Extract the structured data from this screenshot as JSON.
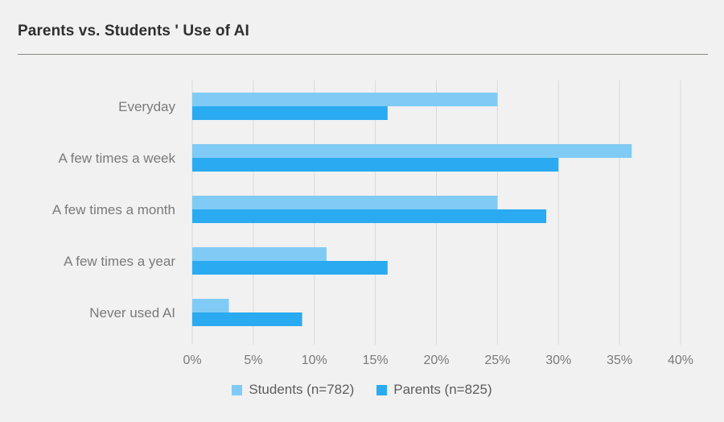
{
  "header": {
    "title": "Parents vs. Students ' Use of AI"
  },
  "colors": {
    "students": "#80cbf5",
    "parents": "#2aaaf0",
    "grid": "#d9d9d9",
    "text": "#7a7a7a"
  },
  "chart_data": {
    "type": "bar",
    "orientation": "horizontal",
    "title": "Parents vs. Students ' Use of AI",
    "categories": [
      "Everyday",
      "A few times a week",
      "A few times a month",
      "A few times a year",
      "Never used AI"
    ],
    "series": [
      {
        "name": "Students (n=782)",
        "values": [
          25,
          36,
          25,
          11,
          3
        ]
      },
      {
        "name": "Parents (n=825)",
        "values": [
          16,
          30,
          29,
          16,
          9
        ]
      }
    ],
    "xlim": [
      0,
      40
    ],
    "xticks": [
      0,
      5,
      10,
      15,
      20,
      25,
      30,
      35,
      40
    ],
    "tick_suffix": "%",
    "xlabel": "",
    "ylabel": "",
    "grid": true,
    "legend_position": "bottom"
  }
}
